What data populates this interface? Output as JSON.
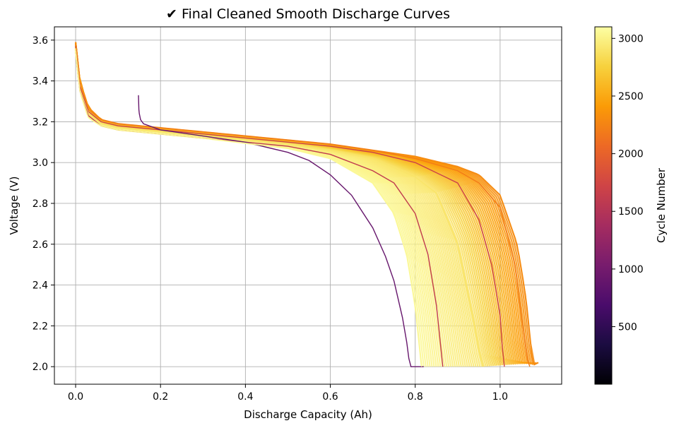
{
  "chart_data": {
    "type": "line",
    "title": "✔ Final Cleaned Smooth Discharge Curves",
    "xlabel": "Discharge Capacity (Ah)",
    "ylabel": "Voltage (V)",
    "xlim": [
      -0.05,
      1.145
    ],
    "ylim": [
      1.914,
      3.665
    ],
    "xticks": [
      "0.0",
      "0.2",
      "0.4",
      "0.6",
      "0.8",
      "1.0"
    ],
    "xtick_values": [
      0.0,
      0.2,
      0.4,
      0.6,
      0.8,
      1.0
    ],
    "yticks": [
      "2.0",
      "2.2",
      "2.4",
      "2.6",
      "2.8",
      "3.0",
      "3.2",
      "3.4",
      "3.6"
    ],
    "ytick_values": [
      2.0,
      2.2,
      2.4,
      2.6,
      2.8,
      3.0,
      3.2,
      3.4,
      3.6
    ],
    "grid": true,
    "legend": "none",
    "colormap": "inferno",
    "colorbar": {
      "label": "Cycle Number",
      "range": [
        1,
        3100
      ],
      "ticks": [
        "500",
        "1000",
        "1500",
        "2000",
        "2500",
        "3000"
      ],
      "tick_values": [
        500,
        1000,
        1500,
        2000,
        2500,
        3000
      ],
      "gradient_stops": [
        "#000004",
        "#1b0c41",
        "#4a0c6b",
        "#781c6d",
        "#a52c60",
        "#cf4446",
        "#ed6925",
        "#fb9b06",
        "#f7d13d",
        "#fcffa4"
      ]
    },
    "series_summary": {
      "curve_count": 60,
      "cycle_range": [
        800,
        3100
      ],
      "end_voltage": 2.0,
      "start_voltage": 3.59,
      "plateau_voltage_range": [
        3.1,
        3.2
      ],
      "end_capacity_range": [
        0.79,
        1.08
      ]
    },
    "series": [
      {
        "cycle": 2300,
        "x": [
          0.0,
          0.01,
          0.03,
          0.06,
          0.1,
          0.3,
          0.5,
          0.6,
          0.7,
          0.8,
          0.9,
          0.95,
          1.0,
          1.04,
          1.06,
          1.07,
          1.075,
          1.08,
          1.09
        ],
        "y": [
          3.59,
          3.4,
          3.27,
          3.21,
          3.19,
          3.15,
          3.11,
          3.09,
          3.06,
          3.03,
          2.98,
          2.94,
          2.84,
          2.6,
          2.35,
          2.15,
          2.05,
          2.01,
          2.02
        ]
      },
      {
        "cycle": 2200,
        "x": [
          0.0,
          0.01,
          0.03,
          0.06,
          0.1,
          0.3,
          0.5,
          0.6,
          0.7,
          0.8,
          0.9,
          0.95,
          1.0,
          1.035,
          1.05,
          1.06,
          1.065,
          1.07
        ],
        "y": [
          3.58,
          3.38,
          3.26,
          3.21,
          3.19,
          3.15,
          3.11,
          3.09,
          3.06,
          3.02,
          2.96,
          2.9,
          2.78,
          2.5,
          2.25,
          2.1,
          2.03,
          2.0
        ]
      },
      {
        "cycle": 1700,
        "x": [
          0.0,
          0.01,
          0.03,
          0.06,
          0.1,
          0.3,
          0.5,
          0.6,
          0.7,
          0.8,
          0.9,
          0.95,
          0.98,
          0.99,
          1.0,
          1.005,
          1.01
        ],
        "y": [
          3.57,
          3.37,
          3.25,
          3.2,
          3.18,
          3.14,
          3.1,
          3.08,
          3.05,
          3.0,
          2.9,
          2.72,
          2.5,
          2.38,
          2.25,
          2.1,
          2.0
        ]
      },
      {
        "cycle": 2900,
        "x": [
          0.0,
          0.01,
          0.03,
          0.06,
          0.1,
          0.3,
          0.5,
          0.6,
          0.7,
          0.8,
          0.85,
          0.9,
          0.92,
          0.94,
          0.95,
          0.96
        ],
        "y": [
          3.56,
          3.36,
          3.24,
          3.19,
          3.17,
          3.13,
          3.09,
          3.06,
          3.02,
          2.93,
          2.85,
          2.6,
          2.4,
          2.2,
          2.08,
          2.0
        ]
      },
      {
        "cycle": 1600,
        "x": [
          0.0,
          0.01,
          0.03,
          0.06,
          0.1,
          0.3,
          0.5,
          0.6,
          0.7,
          0.75,
          0.8,
          0.83,
          0.85,
          0.86,
          0.865
        ],
        "y": [
          3.55,
          3.35,
          3.23,
          3.18,
          3.16,
          3.12,
          3.08,
          3.04,
          2.96,
          2.9,
          2.75,
          2.55,
          2.3,
          2.1,
          2.0
        ]
      },
      {
        "cycle": 900,
        "x": [
          0.148,
          0.149,
          0.15,
          0.153,
          0.16,
          0.2,
          0.3,
          0.4,
          0.5,
          0.55,
          0.6,
          0.65,
          0.7,
          0.73,
          0.75,
          0.77,
          0.78,
          0.785,
          0.79,
          0.82
        ],
        "y": [
          3.33,
          3.26,
          3.24,
          3.21,
          3.19,
          3.16,
          3.13,
          3.1,
          3.05,
          3.01,
          2.94,
          2.84,
          2.68,
          2.54,
          2.42,
          2.24,
          2.12,
          2.04,
          2.0,
          2.0
        ]
      },
      {
        "cycle": 3050,
        "x": [
          0.0,
          0.01,
          0.03,
          0.06,
          0.1,
          0.3,
          0.5,
          0.6,
          0.7,
          0.75,
          0.78,
          0.8,
          0.81,
          0.815
        ],
        "y": [
          3.55,
          3.35,
          3.22,
          3.18,
          3.16,
          3.12,
          3.07,
          3.02,
          2.9,
          2.75,
          2.55,
          2.3,
          2.1,
          2.0
        ]
      }
    ]
  }
}
